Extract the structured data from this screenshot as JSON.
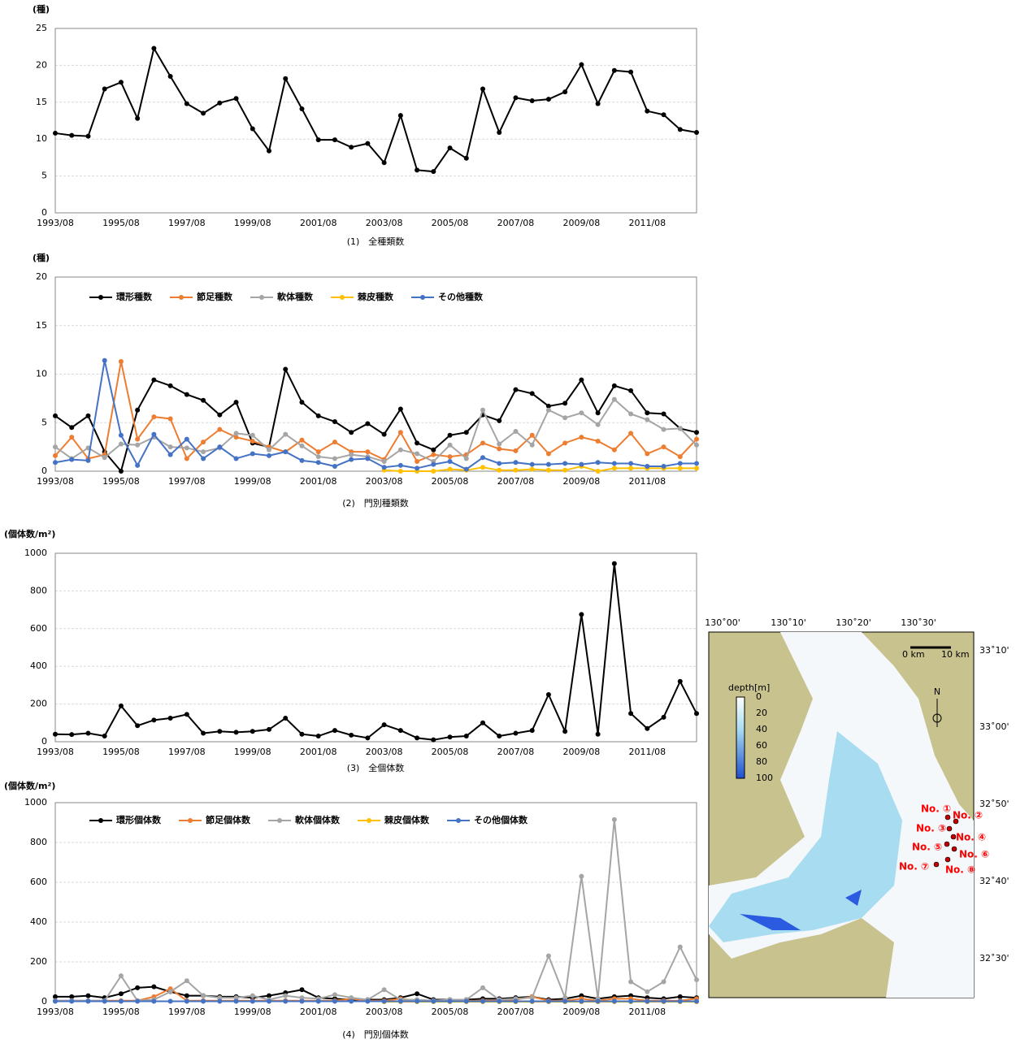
{
  "chart_data": [
    {
      "type": "line",
      "title": "(1)　全種類数",
      "y_label": "(種)",
      "color": "#000000",
      "categories": [
        "1993/08",
        null,
        null,
        null,
        "1995/08",
        null,
        null,
        null,
        "1997/08",
        null,
        null,
        null,
        "1999/08",
        null,
        null,
        null,
        "2001/08",
        null,
        null,
        null,
        "2003/08",
        null,
        null,
        null,
        "2005/08",
        null,
        null,
        null,
        "2007/08",
        null,
        null,
        null,
        "2009/08",
        null,
        null,
        null,
        "2011/08",
        null,
        null,
        null
      ],
      "values": [
        10.8,
        10.5,
        10.4,
        16.8,
        17.7,
        12.8,
        22.3,
        18.5,
        14.8,
        13.5,
        14.9,
        15.5,
        11.4,
        8.4,
        18.2,
        14.1,
        9.9,
        9.9,
        8.9,
        9.4,
        6.8,
        13.2,
        5.8,
        5.6,
        8.8,
        7.4,
        16.8,
        10.9,
        15.6,
        15.2,
        15.4,
        16.4,
        20.1,
        14.8,
        19.3,
        19.1,
        13.8,
        13.3,
        11.3,
        10.9
      ],
      "ylim": [
        0,
        25
      ],
      "yticks": [
        0,
        5,
        10,
        15,
        20,
        25
      ],
      "grid": true
    },
    {
      "type": "line",
      "title": "(2)　門別種類数",
      "y_label": "(種)",
      "legend": "upper left",
      "categories": [
        "1993/08",
        null,
        null,
        null,
        "1995/08",
        null,
        null,
        null,
        "1997/08",
        null,
        null,
        null,
        "1999/08",
        null,
        null,
        null,
        "2001/08",
        null,
        null,
        null,
        "2003/08",
        null,
        null,
        null,
        "2005/08",
        null,
        null,
        null,
        "2007/08",
        null,
        null,
        null,
        "2009/08",
        null,
        null,
        null,
        "2011/08",
        null,
        null,
        null
      ],
      "series": [
        {
          "name": "環形種数",
          "color": "#000000",
          "values": [
            5.7,
            4.5,
            5.7,
            2.0,
            0,
            6.3,
            9.4,
            8.8,
            7.9,
            7.3,
            5.8,
            7.1,
            2.9,
            2.5,
            10.5,
            7.1,
            5.7,
            5.1,
            4.0,
            4.9,
            3.8,
            6.4,
            2.9,
            2.2,
            3.7,
            4.0,
            5.8,
            5.2,
            8.4,
            8.0,
            6.7,
            7.0,
            9.4,
            6.0,
            8.8,
            8.3,
            6.0,
            5.9,
            4.4,
            4.0
          ]
        },
        {
          "name": "節足種数",
          "color": "#ed7d31",
          "values": [
            1.6,
            3.5,
            1.3,
            1.7,
            11.3,
            3.3,
            5.6,
            5.4,
            1.3,
            3.0,
            4.3,
            3.5,
            3.1,
            2.5,
            2.0,
            3.2,
            2.0,
            3.0,
            2.0,
            2.0,
            1.2,
            4.0,
            1.0,
            1.7,
            1.5,
            1.7,
            2.9,
            2.3,
            2.1,
            3.7,
            1.8,
            2.9,
            3.5,
            3.1,
            2.2,
            3.9,
            1.8,
            2.5,
            1.5,
            3.3
          ]
        },
        {
          "name": "軟体種数",
          "color": "#a5a5a5",
          "values": [
            2.5,
            1.3,
            2.4,
            1.4,
            2.8,
            2.7,
            3.5,
            2.5,
            2.4,
            2.0,
            2.4,
            3.9,
            3.7,
            2.2,
            3.8,
            2.6,
            1.5,
            1.3,
            1.7,
            1.5,
            1.0,
            2.2,
            1.8,
            1.0,
            2.7,
            1.3,
            6.3,
            2.8,
            4.1,
            2.7,
            6.3,
            5.5,
            6.0,
            4.8,
            7.4,
            5.9,
            5.3,
            4.3,
            4.4,
            2.7
          ]
        },
        {
          "name": "棘皮種数",
          "color": "#ffc000",
          "values": [
            null,
            null,
            null,
            null,
            null,
            null,
            null,
            null,
            null,
            null,
            null,
            null,
            null,
            null,
            null,
            null,
            null,
            null,
            null,
            null,
            0.1,
            0,
            0,
            0,
            0.2,
            0.1,
            0.4,
            0.1,
            0.1,
            0.2,
            0.1,
            0.1,
            0.5,
            0,
            0.3,
            0.3,
            0.3,
            0.3,
            0.3,
            0.3
          ]
        },
        {
          "name": "その他種数",
          "color": "#4472c4",
          "values": [
            0.9,
            1.2,
            1.1,
            11.4,
            3.7,
            0.6,
            3.8,
            1.7,
            3.3,
            1.3,
            2.5,
            1.3,
            1.8,
            1.6,
            2.0,
            1.1,
            0.9,
            0.5,
            1.2,
            1.3,
            0.4,
            0.6,
            0.3,
            0.7,
            1.0,
            0.2,
            1.4,
            0.8,
            0.9,
            0.7,
            0.7,
            0.8,
            0.7,
            0.9,
            0.8,
            0.8,
            0.5,
            0.5,
            0.8,
            0.8
          ]
        }
      ],
      "ylim": [
        0,
        20
      ],
      "yticks": [
        0,
        5,
        10,
        15,
        20
      ],
      "grid": true
    },
    {
      "type": "line",
      "title": "(3)　全個体数",
      "y_label": "(個体数/m²)",
      "color": "#000000",
      "categories": [
        "1993/08",
        null,
        null,
        null,
        "1995/08",
        null,
        null,
        null,
        "1997/08",
        null,
        null,
        null,
        "1999/08",
        null,
        null,
        null,
        "2001/08",
        null,
        null,
        null,
        "2003/08",
        null,
        null,
        null,
        "2005/08",
        null,
        null,
        null,
        "2007/08",
        null,
        null,
        null,
        "2009/08",
        null,
        null,
        null,
        "2011/08",
        null,
        null,
        null
      ],
      "values": [
        40,
        38,
        45,
        30,
        190,
        85,
        115,
        125,
        145,
        45,
        55,
        50,
        55,
        65,
        125,
        40,
        30,
        60,
        35,
        20,
        90,
        60,
        20,
        10,
        25,
        30,
        100,
        30,
        45,
        60,
        250,
        55,
        675,
        40,
        945,
        150,
        70,
        130,
        320,
        150
      ],
      "ylim": [
        0,
        1000
      ],
      "yticks": [
        0,
        200,
        400,
        600,
        800,
        1000
      ],
      "grid": true
    },
    {
      "type": "line",
      "title": "(4)　門別個体数",
      "y_label": "(個体数/m²)",
      "legend": "upper left",
      "categories": [
        "1993/08",
        null,
        null,
        null,
        "1995/08",
        null,
        null,
        null,
        "1997/08",
        null,
        null,
        null,
        "1999/08",
        null,
        null,
        null,
        "2001/08",
        null,
        null,
        null,
        "2003/08",
        null,
        null,
        null,
        "2005/08",
        null,
        null,
        null,
        "2007/08",
        null,
        null,
        null,
        "2009/08",
        null,
        null,
        null,
        "2011/08",
        null,
        null,
        null
      ],
      "series": [
        {
          "name": "環形個体数",
          "color": "#000000",
          "values": [
            25,
            25,
            30,
            20,
            40,
            70,
            75,
            50,
            30,
            30,
            25,
            25,
            20,
            30,
            45,
            60,
            20,
            15,
            10,
            10,
            10,
            20,
            40,
            10,
            10,
            10,
            15,
            15,
            20,
            25,
            10,
            15,
            30,
            15,
            25,
            30,
            20,
            15,
            25,
            20
          ]
        },
        {
          "name": "節足個体数",
          "color": "#ed7d31",
          "values": [
            5,
            5,
            5,
            5,
            5,
            5,
            25,
            65,
            5,
            5,
            5,
            5,
            5,
            5,
            5,
            5,
            5,
            5,
            15,
            5,
            5,
            15,
            5,
            5,
            5,
            5,
            5,
            5,
            10,
            25,
            5,
            5,
            15,
            5,
            15,
            15,
            5,
            5,
            5,
            15
          ]
        },
        {
          "name": "軟体個体数",
          "color": "#a5a5a5",
          "values": [
            5,
            5,
            5,
            5,
            130,
            5,
            10,
            50,
            105,
            30,
            20,
            20,
            30,
            10,
            30,
            20,
            15,
            35,
            20,
            10,
            60,
            10,
            10,
            5,
            10,
            10,
            70,
            10,
            15,
            20,
            230,
            20,
            630,
            15,
            915,
            100,
            50,
            100,
            275,
            110
          ]
        },
        {
          "name": "棘皮個体数",
          "color": "#ffc000",
          "values": [
            null,
            null,
            null,
            null,
            null,
            null,
            null,
            null,
            null,
            null,
            null,
            null,
            null,
            null,
            null,
            null,
            null,
            null,
            null,
            null,
            0,
            0,
            0,
            0,
            0,
            0,
            0,
            0,
            0,
            0,
            0,
            0,
            0,
            0,
            0,
            0,
            0,
            0,
            0,
            0
          ]
        },
        {
          "name": "その他個体数",
          "color": "#4472c4",
          "values": [
            2,
            2,
            2,
            2,
            2,
            2,
            2,
            2,
            2,
            2,
            2,
            2,
            2,
            2,
            2,
            2,
            2,
            2,
            2,
            2,
            2,
            2,
            2,
            2,
            2,
            2,
            2,
            2,
            2,
            2,
            2,
            2,
            2,
            2,
            2,
            2,
            2,
            2,
            2,
            2
          ]
        }
      ],
      "ylim": [
        0,
        1000
      ],
      "yticks": [
        0,
        200,
        400,
        600,
        800,
        1000
      ],
      "grid": true
    }
  ],
  "map": {
    "lon_labels": [
      "130˚00'",
      "130˚10'",
      "130˚20'",
      "130˚30'"
    ],
    "lat_labels": [
      "33˚10'",
      "33˚00'",
      "32˚50'",
      "32˚40'",
      "32˚30'"
    ],
    "depth_title": "depth[m]",
    "depth_ticks": [
      "0",
      "20",
      "40",
      "60",
      "80",
      "100"
    ],
    "scale": [
      "0 km",
      "10 km"
    ],
    "north": "N",
    "stations": [
      "No. ①",
      "No. ②",
      "No. ③",
      "No. ④",
      "No. ⑤",
      "No. ⑥",
      "No. ⑦",
      "No. ⑧"
    ]
  }
}
